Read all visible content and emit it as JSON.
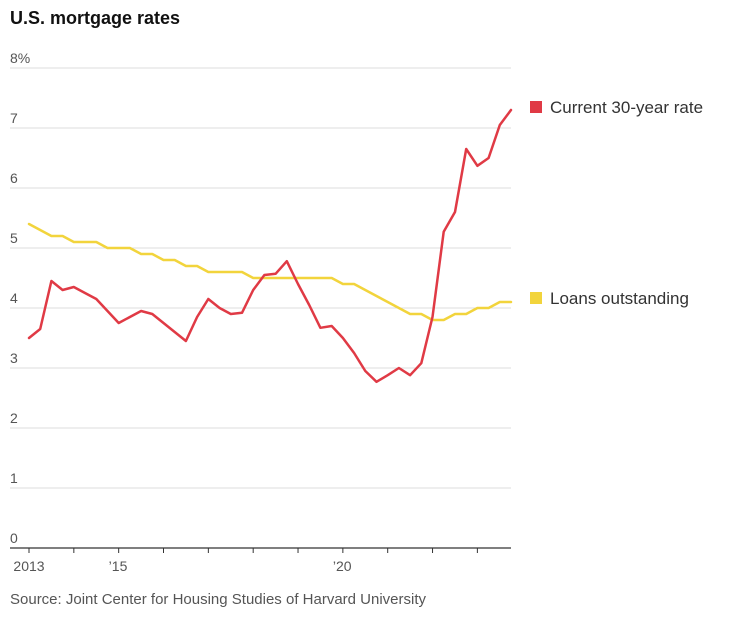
{
  "title": "U.S. mortgage rates",
  "source": "Source: Joint Center for Housing Studies of Harvard University",
  "colors": {
    "current": "#e03a45",
    "outstanding": "#f2d43c",
    "grid": "#dddddd",
    "axis": "#333333"
  },
  "chart_data": {
    "type": "line",
    "title": "U.S. mortgage rates",
    "xlabel": "",
    "ylabel": "",
    "ylim": [
      0,
      8
    ],
    "xlim": [
      2013.0,
      2023.75
    ],
    "grid": true,
    "y_ticks": [
      {
        "value": 8,
        "label": "8%"
      },
      {
        "value": 7,
        "label": "7"
      },
      {
        "value": 6,
        "label": "6"
      },
      {
        "value": 5,
        "label": "5"
      },
      {
        "value": 4,
        "label": "4"
      },
      {
        "value": 3,
        "label": "3"
      },
      {
        "value": 2,
        "label": "2"
      },
      {
        "value": 1,
        "label": "1"
      },
      {
        "value": 0,
        "label": "0"
      }
    ],
    "x_ticks": [
      {
        "value": 2013,
        "label": "2013"
      },
      {
        "value": 2014,
        "label": ""
      },
      {
        "value": 2015,
        "label": "’15"
      },
      {
        "value": 2016,
        "label": ""
      },
      {
        "value": 2017,
        "label": ""
      },
      {
        "value": 2018,
        "label": ""
      },
      {
        "value": 2019,
        "label": ""
      },
      {
        "value": 2020,
        "label": "’20"
      },
      {
        "value": 2021,
        "label": ""
      },
      {
        "value": 2022,
        "label": ""
      },
      {
        "value": 2023,
        "label": ""
      }
    ],
    "legend_placement": "right, next to line ends",
    "series": [
      {
        "name": "Current 30-year rate",
        "color": "#e03a45",
        "x": [
          2013.0,
          2013.25,
          2013.5,
          2013.75,
          2014.0,
          2014.25,
          2014.5,
          2014.75,
          2015.0,
          2015.25,
          2015.5,
          2015.75,
          2016.0,
          2016.25,
          2016.5,
          2016.75,
          2017.0,
          2017.25,
          2017.5,
          2017.75,
          2018.0,
          2018.25,
          2018.5,
          2018.75,
          2019.0,
          2019.25,
          2019.5,
          2019.75,
          2020.0,
          2020.25,
          2020.5,
          2020.75,
          2021.0,
          2021.25,
          2021.5,
          2021.75,
          2022.0,
          2022.25,
          2022.5,
          2022.75,
          2023.0,
          2023.25,
          2023.5,
          2023.75
        ],
        "values": [
          3.5,
          3.65,
          4.45,
          4.3,
          4.35,
          4.25,
          4.15,
          3.95,
          3.75,
          3.85,
          3.95,
          3.9,
          3.75,
          3.6,
          3.45,
          3.85,
          4.15,
          4.0,
          3.9,
          3.92,
          4.3,
          4.55,
          4.57,
          4.78,
          4.4,
          4.05,
          3.67,
          3.7,
          3.5,
          3.25,
          2.95,
          2.77,
          2.88,
          3.0,
          2.88,
          3.08,
          3.85,
          5.27,
          5.6,
          6.65,
          6.37,
          6.5,
          7.05,
          7.3
        ]
      },
      {
        "name": "Loans outstanding",
        "color": "#f2d43c",
        "x": [
          2013.0,
          2013.25,
          2013.5,
          2013.75,
          2014.0,
          2014.25,
          2014.5,
          2014.75,
          2015.0,
          2015.25,
          2015.5,
          2015.75,
          2016.0,
          2016.25,
          2016.5,
          2016.75,
          2017.0,
          2017.25,
          2017.5,
          2017.75,
          2018.0,
          2018.25,
          2018.5,
          2018.75,
          2019.0,
          2019.25,
          2019.5,
          2019.75,
          2020.0,
          2020.25,
          2020.5,
          2020.75,
          2021.0,
          2021.25,
          2021.5,
          2021.75,
          2022.0,
          2022.25,
          2022.5,
          2022.75,
          2023.0,
          2023.25,
          2023.5,
          2023.75
        ],
        "values": [
          5.4,
          5.3,
          5.2,
          5.2,
          5.1,
          5.1,
          5.1,
          5.0,
          5.0,
          5.0,
          4.9,
          4.9,
          4.8,
          4.8,
          4.7,
          4.7,
          4.6,
          4.6,
          4.6,
          4.6,
          4.5,
          4.5,
          4.5,
          4.5,
          4.5,
          4.5,
          4.5,
          4.5,
          4.4,
          4.4,
          4.3,
          4.2,
          4.1,
          4.0,
          3.9,
          3.9,
          3.8,
          3.8,
          3.9,
          3.9,
          4.0,
          4.0,
          4.1,
          4.1
        ]
      }
    ]
  }
}
